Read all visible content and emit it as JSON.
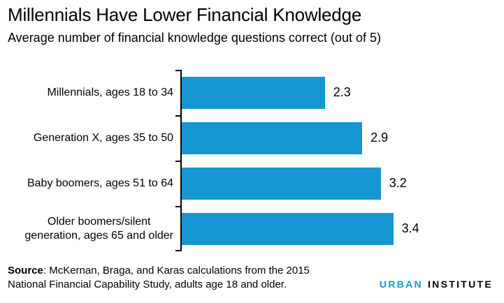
{
  "header": {
    "title": "Millennials Have Lower Financial Knowledge",
    "subtitle": "Average number of financial knowledge questions correct (out of 5)"
  },
  "chart_data": {
    "type": "bar",
    "orientation": "horizontal",
    "title": "Millennials Have Lower Financial Knowledge",
    "subtitle": "Average number of financial knowledge questions correct (out of 5)",
    "categories": [
      "Millennials, ages 18 to 34",
      "Generation X, ages 35 to 50",
      "Baby boomers, ages 51 to 64",
      "Older boomers/silent\ngeneration, ages 65 and older"
    ],
    "values": [
      2.3,
      2.9,
      3.2,
      3.4
    ],
    "value_labels": [
      "2.3",
      "2.9",
      "3.2",
      "3.4"
    ],
    "xlabel": "",
    "ylabel": "",
    "xlim": [
      0,
      4
    ],
    "grid": false,
    "legend": "none",
    "bar_color": "#1696d2",
    "axis_color": "#000000"
  },
  "footer": {
    "source_label": "Source",
    "source_text": ": McKernan, Braga, and Karas calculations from the 2015 National Financial Capability Study, adults age 18 and older.",
    "logo": {
      "word1": "URBAN",
      "word2": "INSTITUTE",
      "word1_color": "#1696d2",
      "word2_color": "#000000"
    }
  }
}
